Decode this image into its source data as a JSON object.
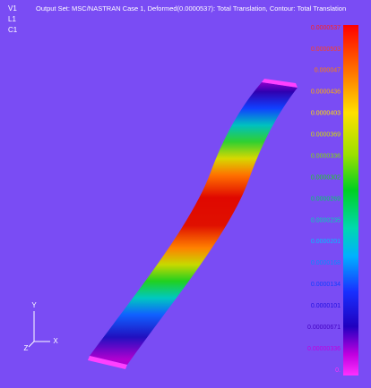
{
  "header": {
    "title": "Output Set: MSC/NASTRAN Case 1, Deformed(0.0000537): Total Translation, Contour: Total Translation",
    "view_labels": [
      "V1",
      "L1",
      "C1"
    ]
  },
  "legend": {
    "labels": [
      "0.0000537",
      "0.0000503",
      "0.000047",
      "0.0000436",
      "0.0000403",
      "0.0000369",
      "0.0000336",
      "0.0000302",
      "0.0000269",
      "0.0000235",
      "0.0000201",
      "0.0000168",
      "0.0000134",
      "0.0000101",
      "0.00000671",
      "0.00000336",
      "0."
    ]
  },
  "axes": {
    "y": "Y",
    "z": "Z",
    "x": "X"
  }
}
